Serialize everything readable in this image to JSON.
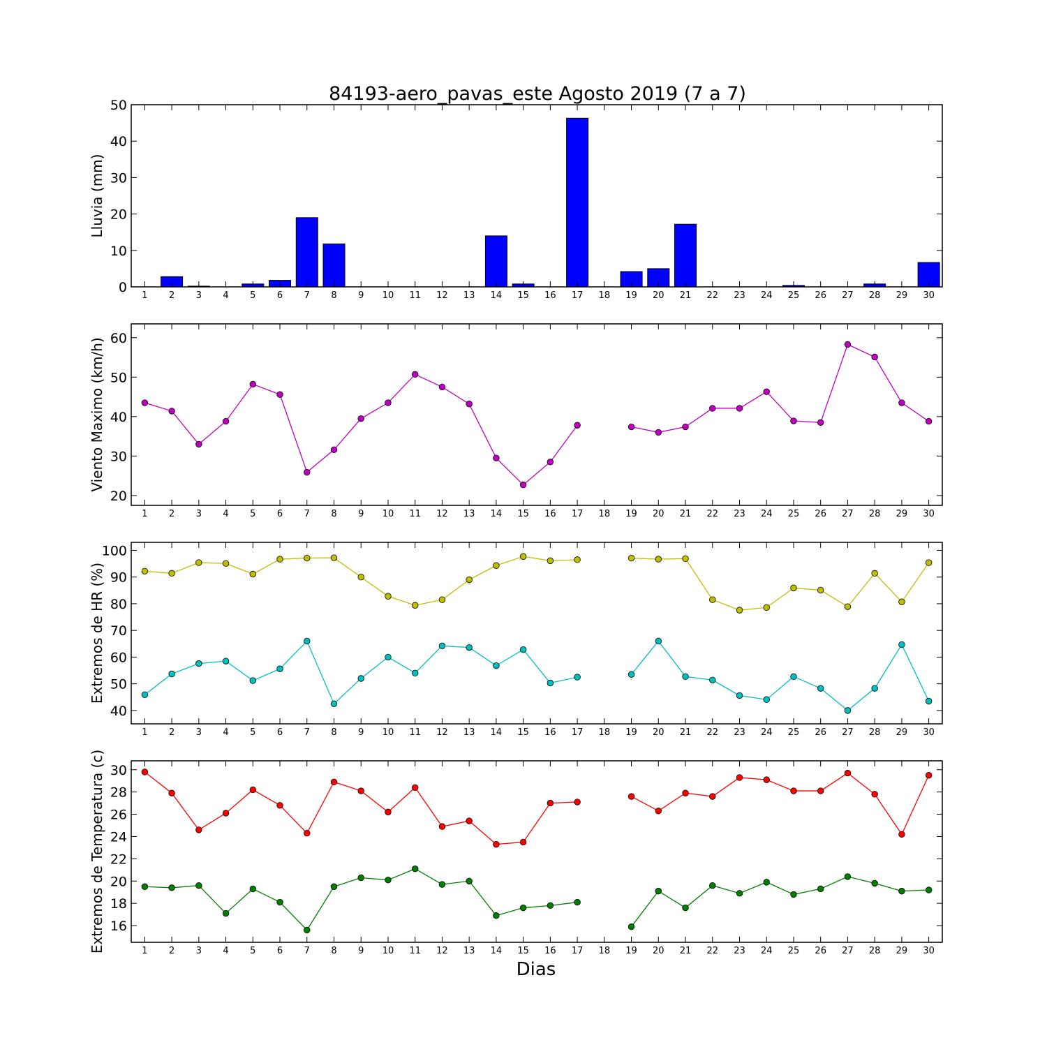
{
  "title": "84193-aero_pavas_este Agosto 2019  (7 a 7)",
  "xlabel": "Dias",
  "chart_data": [
    {
      "type": "bar",
      "ylabel": "Lluvia (mm)",
      "ylim": [
        0,
        50
      ],
      "yticks": [
        0,
        10,
        20,
        30,
        40,
        50
      ],
      "x": [
        1,
        2,
        3,
        4,
        5,
        6,
        7,
        8,
        9,
        10,
        11,
        12,
        13,
        14,
        15,
        16,
        17,
        18,
        19,
        20,
        21,
        22,
        23,
        24,
        25,
        26,
        27,
        28,
        29,
        30
      ],
      "series": [
        {
          "color": "#0000ff",
          "values": [
            0,
            2.8,
            0.2,
            0,
            0.8,
            1.8,
            19,
            11.8,
            0,
            0,
            0,
            0,
            0,
            14,
            0.8,
            0,
            46.3,
            0,
            4.2,
            5,
            17.2,
            0,
            0,
            0,
            0.4,
            0,
            0,
            0.8,
            0,
            6.7
          ]
        }
      ]
    },
    {
      "type": "line",
      "ylabel": "Viento Maximo (km/h)",
      "ylim": [
        17.5,
        63.5
      ],
      "yticks": [
        20,
        30,
        40,
        50,
        60
      ],
      "x": [
        1,
        2,
        3,
        4,
        5,
        6,
        7,
        8,
        9,
        10,
        11,
        12,
        13,
        14,
        15,
        16,
        17,
        18,
        19,
        20,
        21,
        22,
        23,
        24,
        25,
        26,
        27,
        28,
        29,
        30
      ],
      "series": [
        {
          "color": "#bf00bf",
          "values": [
            43.5,
            41.4,
            33,
            38.8,
            48.2,
            45.6,
            25.9,
            31.6,
            39.5,
            43.5,
            50.7,
            47.5,
            43.2,
            29.5,
            22.7,
            28.5,
            37.8,
            null,
            37.4,
            36,
            37.4,
            42.1,
            42.1,
            46.3,
            38.9,
            38.5,
            58.3,
            55.1,
            43.5,
            38.8
          ]
        }
      ]
    },
    {
      "type": "line",
      "ylabel": "Extremos de HR (%)",
      "ylim": [
        35,
        103
      ],
      "yticks": [
        40,
        50,
        60,
        70,
        80,
        90,
        100
      ],
      "x": [
        1,
        2,
        3,
        4,
        5,
        6,
        7,
        8,
        9,
        10,
        11,
        12,
        13,
        14,
        15,
        16,
        17,
        18,
        19,
        20,
        21,
        22,
        23,
        24,
        25,
        26,
        27,
        28,
        29,
        30
      ],
      "series": [
        {
          "color": "#bfbf00",
          "values": [
            92.2,
            91.4,
            95.4,
            95.1,
            91.1,
            96.7,
            97.1,
            97.2,
            90,
            82.8,
            79.4,
            81.5,
            89,
            94.3,
            97.7,
            96.1,
            96.5,
            null,
            97.1,
            96.7,
            96.9,
            81.5,
            77.6,
            78.6,
            85.9,
            85.1,
            78.9,
            91.4,
            80.7,
            95.4
          ]
        },
        {
          "color": "#00bfbf",
          "values": [
            45.9,
            53.7,
            57.6,
            58.5,
            51.2,
            55.6,
            66,
            42.5,
            52,
            60,
            54,
            64.2,
            63.6,
            56.8,
            62.8,
            50.3,
            52.5,
            null,
            53.5,
            66,
            52.7,
            51.4,
            45.6,
            44.1,
            52.7,
            48.3,
            40,
            48.3,
            64.7,
            43.5
          ]
        }
      ]
    },
    {
      "type": "line",
      "ylabel": "Extremos de Temperatura (c)",
      "ylim": [
        14.5,
        30.8
      ],
      "yticks": [
        16,
        18,
        20,
        22,
        24,
        26,
        28,
        30
      ],
      "x": [
        1,
        2,
        3,
        4,
        5,
        6,
        7,
        8,
        9,
        10,
        11,
        12,
        13,
        14,
        15,
        16,
        17,
        18,
        19,
        20,
        21,
        22,
        23,
        24,
        25,
        26,
        27,
        28,
        29,
        30
      ],
      "series": [
        {
          "color": "#ff0000",
          "values": [
            29.8,
            27.9,
            24.6,
            26.1,
            28.2,
            26.8,
            24.3,
            28.9,
            28.1,
            26.2,
            28.4,
            24.9,
            25.4,
            23.3,
            23.5,
            27,
            27.1,
            null,
            27.6,
            26.3,
            27.9,
            27.6,
            29.3,
            29.1,
            28.1,
            28.1,
            29.7,
            27.8,
            24.2,
            29.5
          ]
        },
        {
          "color": "#007f00",
          "values": [
            19.5,
            19.4,
            19.6,
            17.1,
            19.3,
            18.1,
            15.6,
            19.5,
            20.3,
            20.1,
            21.1,
            19.7,
            20,
            16.9,
            17.6,
            17.8,
            18.1,
            null,
            15.9,
            19.1,
            17.6,
            19.6,
            18.9,
            19.9,
            18.8,
            19.3,
            20.4,
            19.8,
            19.1,
            19.2
          ]
        }
      ]
    }
  ]
}
